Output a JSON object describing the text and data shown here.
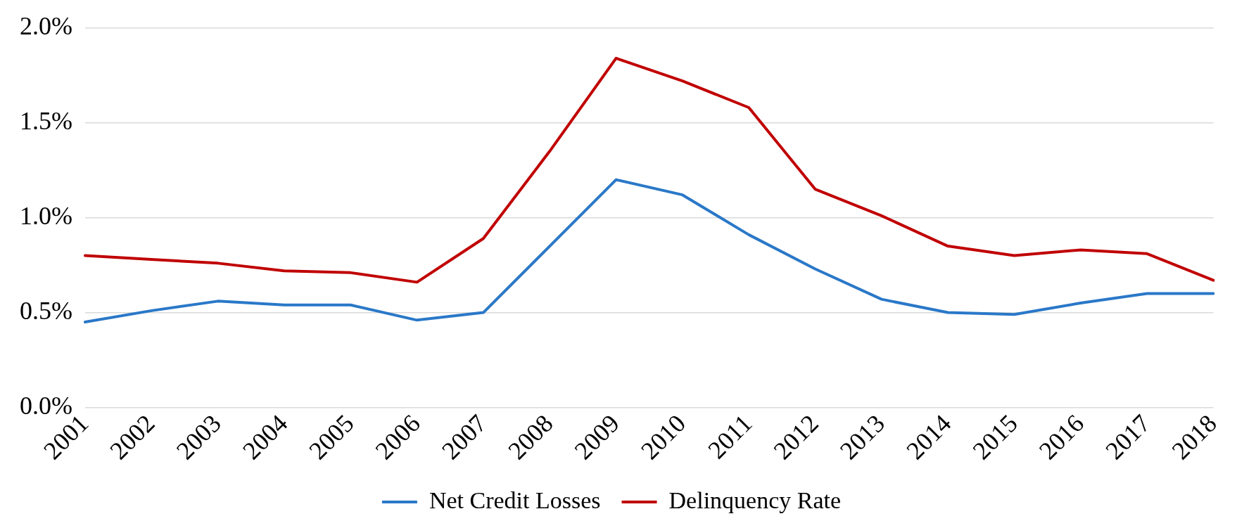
{
  "chart_data": {
    "type": "line",
    "categories": [
      "2001",
      "2002",
      "2003",
      "2004",
      "2005",
      "2006",
      "2007",
      "2008",
      "2009",
      "2010",
      "2011",
      "2012",
      "2013",
      "2014",
      "2015",
      "2016",
      "2017",
      "2018"
    ],
    "series": [
      {
        "name": "Net Credit Losses",
        "color": "#2a78c8",
        "values": [
          0.45,
          0.51,
          0.56,
          0.54,
          0.54,
          0.46,
          0.5,
          0.85,
          1.2,
          1.12,
          0.91,
          0.73,
          0.57,
          0.5,
          0.49,
          0.55,
          0.6,
          0.6
        ]
      },
      {
        "name": "Delinquency Rate",
        "color": "#c00000",
        "values": [
          0.8,
          0.78,
          0.76,
          0.72,
          0.71,
          0.66,
          0.89,
          1.35,
          1.84,
          1.72,
          1.58,
          1.15,
          1.01,
          0.85,
          0.8,
          0.83,
          0.81,
          0.67
        ]
      }
    ],
    "ylim": [
      0,
      2
    ],
    "yticks": [
      {
        "value": 0,
        "label": "0.0%"
      },
      {
        "value": 0.5,
        "label": "0.5%"
      },
      {
        "value": 1,
        "label": "1.0%"
      },
      {
        "value": 1.5,
        "label": "1.5%"
      },
      {
        "value": 2,
        "label": "2.0%"
      }
    ],
    "grid": "y",
    "legend": "bottom",
    "marker": "none",
    "line_style": "solid"
  }
}
